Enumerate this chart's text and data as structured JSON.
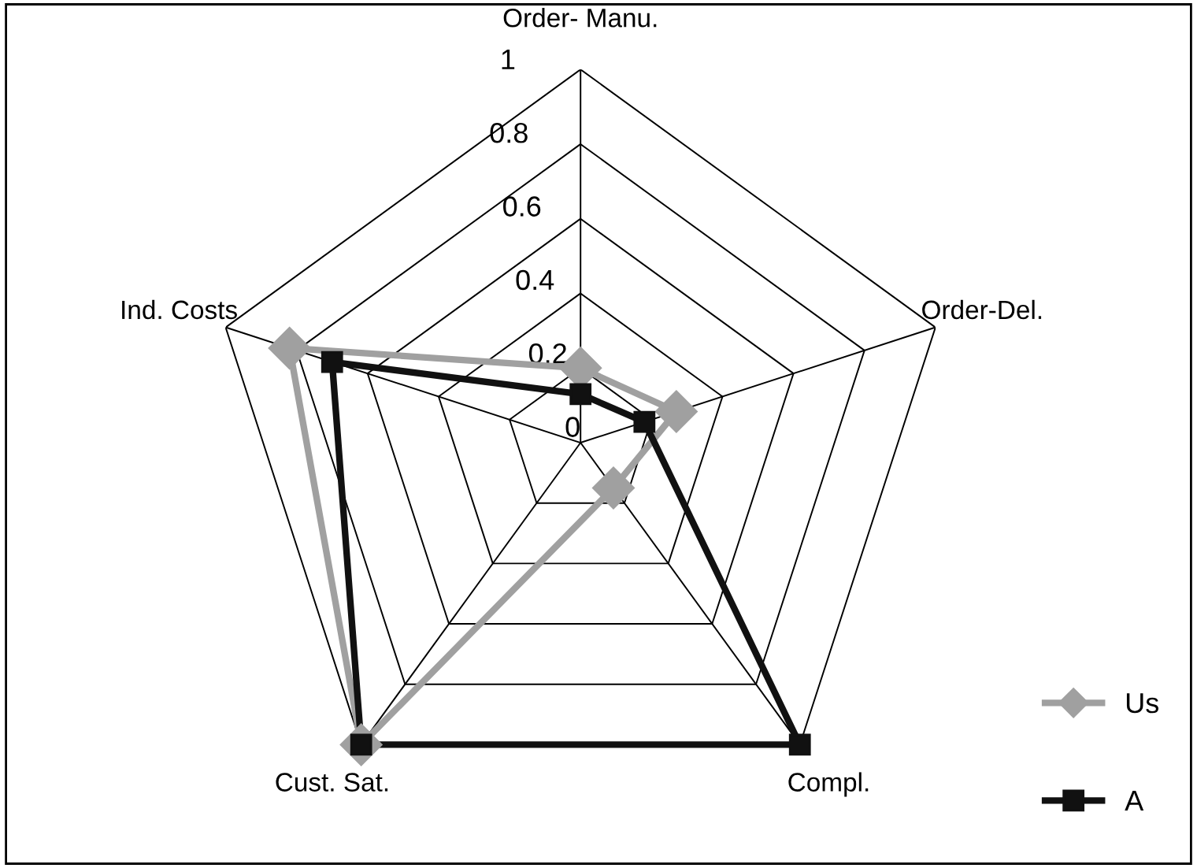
{
  "chart_data": {
    "type": "radar",
    "categories": [
      "Order- Manu.",
      "Order-Del.",
      "Compl.",
      "Cust. Sat.",
      "Ind. Costs"
    ],
    "ylim": [
      0,
      1
    ],
    "yticks": [
      0,
      0.2,
      0.4,
      0.6,
      0.8,
      1
    ],
    "grid": true,
    "legend": "right",
    "series": [
      {
        "name": "Us",
        "color": "#a0a0a0",
        "marker": "diamond",
        "values": [
          0.2,
          0.27,
          0.15,
          1.0,
          0.82
        ]
      },
      {
        "name": "A",
        "color": "#111111",
        "marker": "square",
        "values": [
          0.13,
          0.18,
          1.0,
          1.0,
          0.7
        ]
      }
    ]
  }
}
